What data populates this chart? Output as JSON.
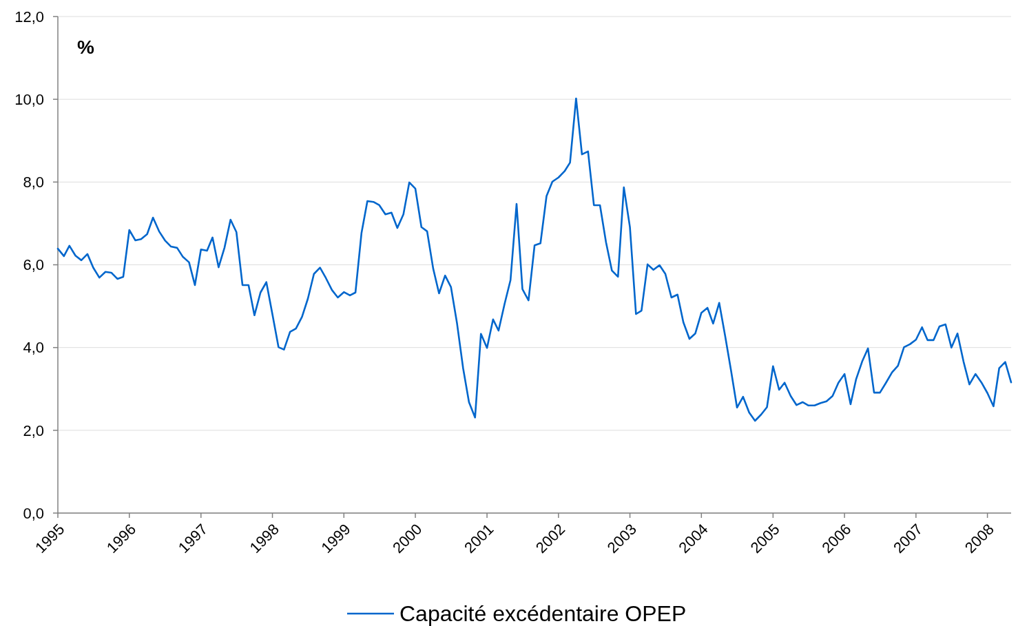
{
  "chart_data": {
    "type": "line",
    "ylabel": "%",
    "x": [
      "1995-01",
      "1995-02",
      "1995-03",
      "1995-04",
      "1995-05",
      "1995-06",
      "1995-07",
      "1995-08",
      "1995-09",
      "1995-10",
      "1995-11",
      "1995-12",
      "1996-01",
      "1996-02",
      "1996-03",
      "1996-04",
      "1996-05",
      "1996-06",
      "1996-07",
      "1996-08",
      "1996-09",
      "1996-10",
      "1996-11",
      "1996-12",
      "1997-01",
      "1997-02",
      "1997-03",
      "1997-04",
      "1997-05",
      "1997-06",
      "1997-07",
      "1997-08",
      "1997-09",
      "1997-10",
      "1997-11",
      "1997-12",
      "1998-01",
      "1998-02",
      "1998-03",
      "1998-04",
      "1998-05",
      "1998-06",
      "1998-07",
      "1998-08",
      "1998-09",
      "1998-10",
      "1998-11",
      "1998-12",
      "1999-01",
      "1999-02",
      "1999-03",
      "1999-04",
      "1999-05",
      "1999-06",
      "1999-07",
      "1999-08",
      "1999-09",
      "1999-10",
      "1999-11",
      "1999-12",
      "2000-01",
      "2000-02",
      "2000-03",
      "2000-04",
      "2000-05",
      "2000-06",
      "2000-07",
      "2000-08",
      "2000-09",
      "2000-10",
      "2000-11",
      "2000-12",
      "2001-01",
      "2001-02",
      "2001-03",
      "2001-04",
      "2001-05",
      "2001-06",
      "2001-07",
      "2001-08",
      "2001-09",
      "2001-10",
      "2001-11",
      "2001-12",
      "2002-01",
      "2002-02",
      "2002-03",
      "2002-04",
      "2002-05",
      "2002-06",
      "2002-07",
      "2002-08",
      "2002-09",
      "2002-10",
      "2002-11",
      "2002-12",
      "2003-01",
      "2003-02",
      "2003-03",
      "2003-04",
      "2003-05",
      "2003-06",
      "2003-07",
      "2003-08",
      "2003-09",
      "2003-10",
      "2003-11",
      "2003-12",
      "2004-01",
      "2004-02",
      "2004-03",
      "2004-04",
      "2004-05",
      "2004-06",
      "2004-07",
      "2004-08",
      "2004-09",
      "2004-10",
      "2004-11",
      "2004-12",
      "2005-01",
      "2005-02",
      "2005-03",
      "2005-04",
      "2005-05",
      "2005-06",
      "2005-07",
      "2005-08",
      "2005-09",
      "2005-10",
      "2005-11",
      "2005-12",
      "2006-01",
      "2006-02",
      "2006-03",
      "2006-04",
      "2006-05",
      "2006-06",
      "2006-07",
      "2006-08",
      "2006-09",
      "2006-10",
      "2006-11",
      "2006-12",
      "2007-01",
      "2007-02",
      "2007-03",
      "2007-04",
      "2007-05",
      "2007-06",
      "2007-07",
      "2007-08",
      "2007-09",
      "2007-10",
      "2007-11",
      "2007-12",
      "2008-01",
      "2008-02",
      "2008-03",
      "2008-04",
      "2008-05"
    ],
    "series": [
      {
        "name": "Capacité excédentaire OPEP",
        "color": "#0066cc",
        "values": [
          6.39,
          6.21,
          6.46,
          6.22,
          6.11,
          6.26,
          5.93,
          5.69,
          5.83,
          5.81,
          5.66,
          5.71,
          6.84,
          6.59,
          6.62,
          6.74,
          7.14,
          6.81,
          6.59,
          6.44,
          6.41,
          6.19,
          6.06,
          5.51,
          6.37,
          6.34,
          6.66,
          5.94,
          6.41,
          7.09,
          6.79,
          5.51,
          5.51,
          4.78,
          5.33,
          5.58,
          4.8,
          4.01,
          3.95,
          4.38,
          4.46,
          4.74,
          5.18,
          5.78,
          5.93,
          5.68,
          5.39,
          5.21,
          5.34,
          5.26,
          5.33,
          6.77,
          7.54,
          7.52,
          7.44,
          7.22,
          7.26,
          6.89,
          7.22,
          7.99,
          7.84,
          6.91,
          6.81,
          5.91,
          5.31,
          5.74,
          5.46,
          4.58,
          3.5,
          2.68,
          2.31,
          4.33,
          3.99,
          4.68,
          4.41,
          5.06,
          5.63,
          7.47,
          5.41,
          5.14,
          6.47,
          6.52,
          7.66,
          8.01,
          8.11,
          8.26,
          8.47,
          10.02,
          8.67,
          8.74,
          7.44,
          7.44,
          6.54,
          5.86,
          5.71,
          7.87,
          6.91,
          4.81,
          4.89,
          6.01,
          5.88,
          5.99,
          5.78,
          5.21,
          5.28,
          4.61,
          4.21,
          4.34,
          4.84,
          4.96,
          4.58,
          5.08,
          4.29,
          3.43,
          2.55,
          2.81,
          2.43,
          2.23,
          2.38,
          2.56,
          3.55,
          2.98,
          3.15,
          2.83,
          2.61,
          2.68,
          2.6,
          2.6,
          2.66,
          2.7,
          2.83,
          3.15,
          3.36,
          2.63,
          3.23,
          3.66,
          3.98,
          2.91,
          2.91,
          3.15,
          3.4,
          3.56,
          4.01,
          4.08,
          4.19,
          4.49,
          4.18,
          4.18,
          4.51,
          4.56,
          4.0,
          4.34,
          3.66,
          3.11,
          3.36,
          3.16,
          2.9,
          2.58,
          3.5,
          3.65,
          3.16
        ]
      }
    ],
    "xlim": [
      "1995-01",
      "2008-05"
    ],
    "xticks": [
      "1995",
      "1996",
      "1997",
      "1998",
      "1999",
      "2000",
      "2001",
      "2002",
      "2003",
      "2004",
      "2005",
      "2006",
      "2007",
      "2008"
    ],
    "ylim": [
      0,
      12
    ],
    "yticks": [
      {
        "value": 0,
        "label": "0,0"
      },
      {
        "value": 2,
        "label": "2,0"
      },
      {
        "value": 4,
        "label": "4,0"
      },
      {
        "value": 6,
        "label": "6,0"
      },
      {
        "value": 8,
        "label": "8,0"
      },
      {
        "value": 10,
        "label": "10,0"
      },
      {
        "value": 12,
        "label": "12,0"
      }
    ],
    "grid": "y",
    "legend": "bottom",
    "line_style": "solid",
    "marker": "none"
  }
}
